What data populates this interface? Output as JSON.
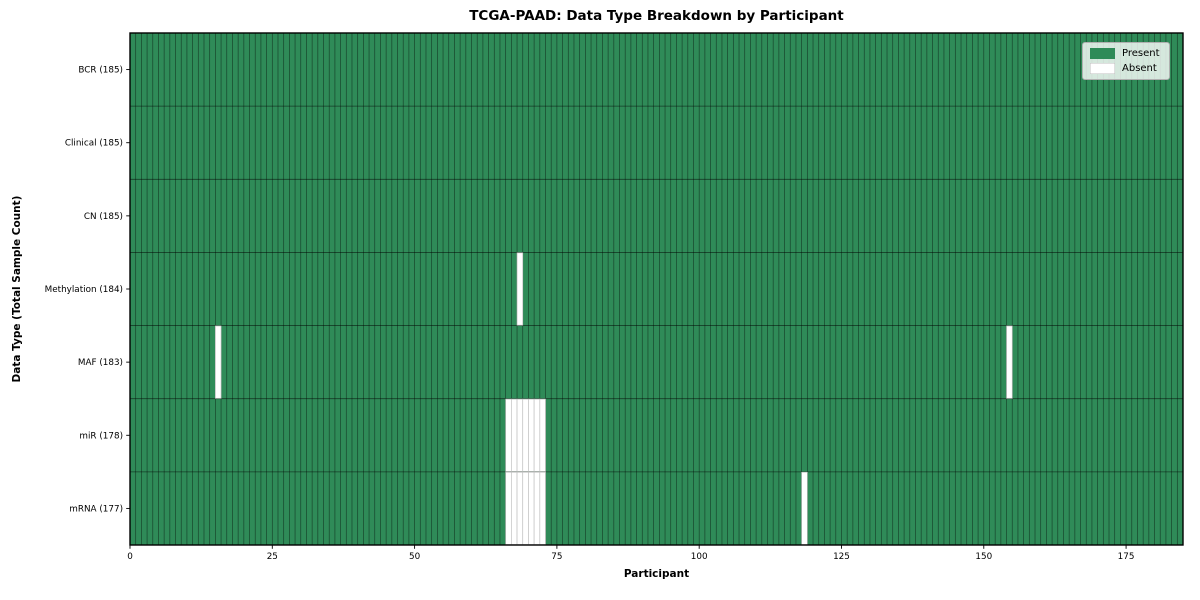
{
  "chart_data": {
    "type": "heatmap",
    "title": "TCGA-PAAD: Data Type Breakdown by Participant",
    "xlabel": "Participant",
    "ylabel": "Data Type (Total Sample Count)",
    "n_participants": 185,
    "xlim": [
      0,
      185
    ],
    "x_ticks": [
      0,
      25,
      50,
      75,
      100,
      125,
      150,
      175
    ],
    "grid": false,
    "legend_position": "upper right",
    "legend": [
      {
        "label": "Present",
        "color": "#2f8b58"
      },
      {
        "label": "Absent",
        "color": "#ffffff"
      }
    ],
    "rows": [
      {
        "name": "BCR",
        "label": "BCR (185)",
        "present_count": 185,
        "absent_participants": []
      },
      {
        "name": "Clinical",
        "label": "Clinical (185)",
        "present_count": 185,
        "absent_participants": []
      },
      {
        "name": "CN",
        "label": "CN (185)",
        "present_count": 185,
        "absent_participants": []
      },
      {
        "name": "Methylation",
        "label": "Methylation (184)",
        "present_count": 184,
        "absent_participants": [
          68
        ]
      },
      {
        "name": "MAF",
        "label": "MAF (183)",
        "present_count": 183,
        "absent_participants": [
          15,
          154
        ]
      },
      {
        "name": "miR",
        "label": "miR (178)",
        "present_count": 178,
        "absent_participants": [
          66,
          67,
          68,
          69,
          70,
          71,
          72
        ]
      },
      {
        "name": "mRNA",
        "label": "mRNA (177)",
        "present_count": 177,
        "absent_participants": [
          66,
          67,
          68,
          69,
          70,
          71,
          72,
          118
        ]
      }
    ],
    "colors": {
      "present_fill": "#2f8b58",
      "absent_fill": "#ffffff",
      "present_edge": "rgba(0,0,0,0.5)",
      "absent_edge": "#c2c2c2",
      "spine": "#000000"
    }
  }
}
